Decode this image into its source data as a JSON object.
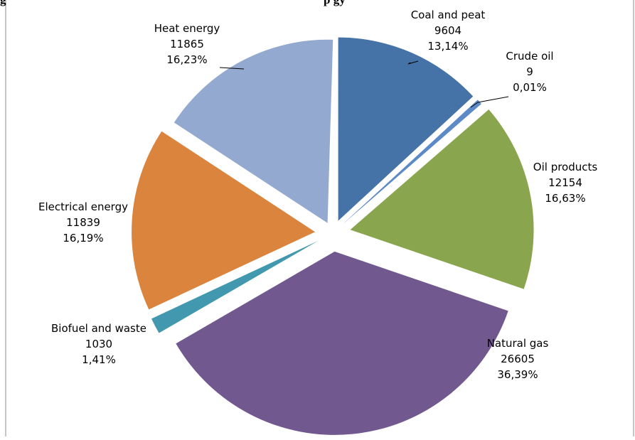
{
  "figure": {
    "caption_fragment": "g",
    "caption_fragment_right": "p                    gy"
  },
  "chart_data": {
    "type": "pie",
    "title": "",
    "exploded": true,
    "slices": [
      {
        "label": "Coal and peat",
        "value": 9604,
        "percent": "13,14%",
        "color": "#4572a7"
      },
      {
        "label": "Crude oil",
        "value": 9,
        "percent": "0,01%",
        "color": "#5b8ac6"
      },
      {
        "label": "Oil products",
        "value": 12154,
        "percent": "16,63%",
        "color": "#89a54e"
      },
      {
        "label": "Natural gas",
        "value": 26605,
        "percent": "36,39%",
        "color": "#71588f"
      },
      {
        "label": "Biofuel and waste",
        "value": 1030,
        "percent": "1,41%",
        "color": "#4198af"
      },
      {
        "label": "Electrical energy",
        "value": 11839,
        "percent": "16,19%",
        "color": "#db843d"
      },
      {
        "label": "Heat energy",
        "value": 11865,
        "percent": "16,23%",
        "color": "#93a9cf"
      }
    ]
  }
}
